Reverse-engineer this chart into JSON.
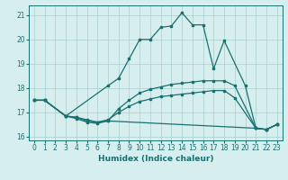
{
  "xlabel": "Humidex (Indice chaleur)",
  "bg_color": "#d6eeed",
  "line_color": "#1a7070",
  "grid_color": "#aacccc",
  "xlim": [
    -0.5,
    23.5
  ],
  "ylim": [
    15.85,
    21.4
  ],
  "yticks": [
    16,
    17,
    18,
    19,
    20,
    21
  ],
  "xticks": [
    0,
    1,
    2,
    3,
    4,
    5,
    6,
    7,
    8,
    9,
    10,
    11,
    12,
    13,
    14,
    15,
    16,
    17,
    18,
    19,
    20,
    21,
    22,
    23
  ],
  "line1_x": [
    0,
    1,
    3,
    4,
    5,
    6,
    7,
    21,
    22,
    23
  ],
  "line1_y": [
    17.5,
    17.5,
    16.85,
    16.75,
    16.6,
    16.55,
    16.65,
    16.35,
    16.3,
    16.5
  ],
  "line2_x": [
    0,
    1,
    3,
    4,
    5,
    6,
    7,
    8,
    9,
    10,
    11,
    12,
    13,
    14,
    15,
    16,
    17,
    18,
    19,
    21,
    22,
    23
  ],
  "line2_y": [
    17.5,
    17.5,
    16.85,
    16.8,
    16.65,
    16.6,
    16.7,
    17.0,
    17.25,
    17.45,
    17.55,
    17.65,
    17.7,
    17.75,
    17.8,
    17.85,
    17.9,
    17.9,
    17.6,
    16.35,
    16.3,
    16.5
  ],
  "line3_x": [
    0,
    1,
    3,
    4,
    5,
    6,
    7,
    8,
    9,
    10,
    11,
    12,
    13,
    14,
    15,
    16,
    17,
    18,
    19,
    21,
    22,
    23
  ],
  "line3_y": [
    17.5,
    17.5,
    16.85,
    16.8,
    16.7,
    16.6,
    16.65,
    17.15,
    17.5,
    17.8,
    17.95,
    18.05,
    18.15,
    18.2,
    18.25,
    18.3,
    18.3,
    18.3,
    18.1,
    16.35,
    16.3,
    16.5
  ],
  "line4_x": [
    0,
    1,
    3,
    7,
    8,
    9,
    10,
    11,
    12,
    13,
    14,
    15,
    16,
    17,
    18,
    20,
    21,
    22,
    23
  ],
  "line4_y": [
    17.5,
    17.5,
    16.85,
    18.1,
    18.4,
    19.2,
    20.0,
    20.0,
    20.5,
    20.55,
    21.1,
    20.6,
    20.6,
    18.8,
    19.95,
    18.1,
    16.35,
    16.3,
    16.5
  ]
}
